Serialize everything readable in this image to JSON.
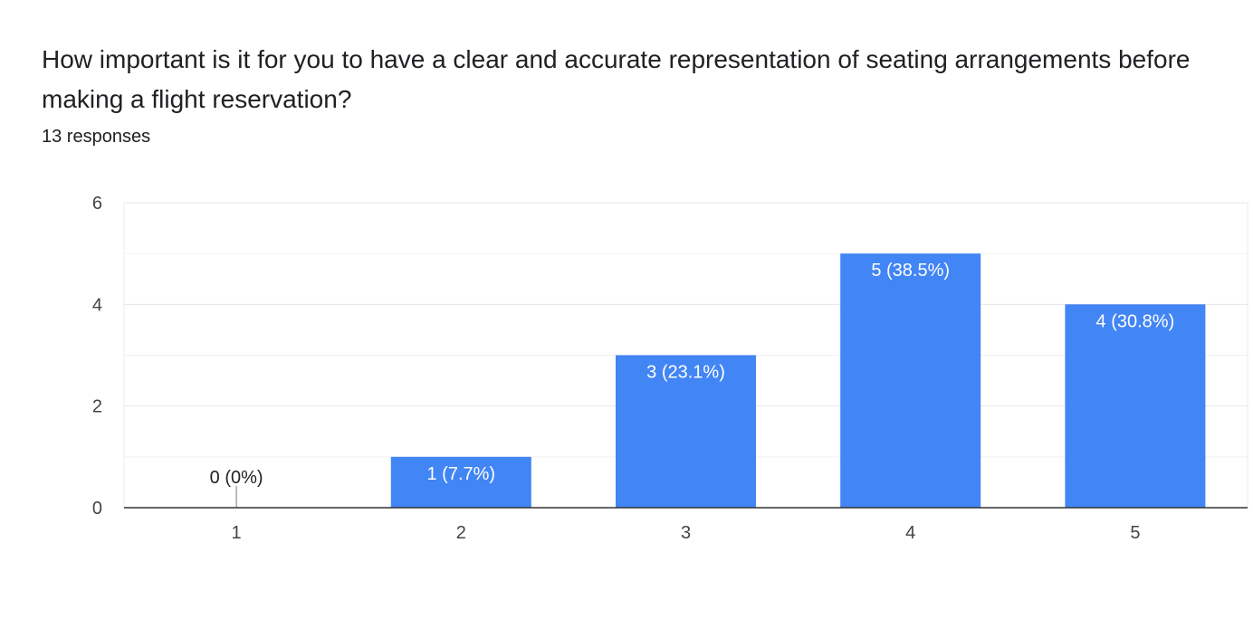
{
  "header": {
    "question": "How important is it for you to have a clear and accurate representation of seating arrangements before making a flight reservation?",
    "responses": "13 responses"
  },
  "colors": {
    "bar": "#4285f4",
    "grid": "#ebebeb",
    "axis": "#333333",
    "label_inside": "#ffffff",
    "label_outside": "#222222"
  },
  "chart_data": {
    "type": "bar",
    "categories": [
      "1",
      "2",
      "3",
      "4",
      "5"
    ],
    "values": [
      0,
      1,
      3,
      5,
      4
    ],
    "data_labels": [
      "0 (0%)",
      "1 (7.7%)",
      "3 (23.1%)",
      "5 (38.5%)",
      "4 (30.8%)"
    ],
    "title": "",
    "xlabel": "",
    "ylabel": "",
    "ylim": [
      0,
      6
    ],
    "y_ticks": [
      0,
      2,
      4,
      6
    ],
    "grid": true
  }
}
